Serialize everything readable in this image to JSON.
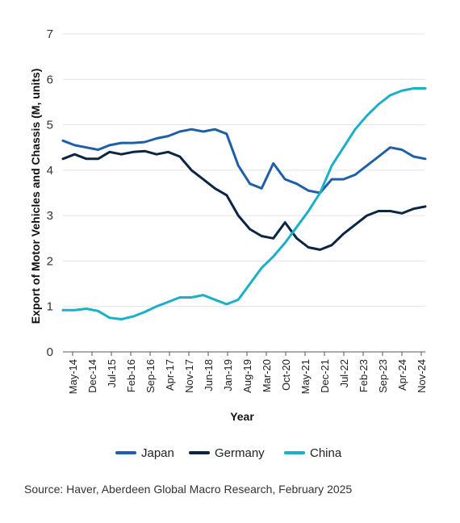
{
  "chart_data": {
    "type": "line",
    "xlabel": "Year",
    "ylabel": "Export of Motor Vehicles and Chassis (M, units)",
    "ylim": [
      0,
      7
    ],
    "yticks": [
      "0",
      "1",
      "2",
      "3",
      "4",
      "5",
      "6",
      "7"
    ],
    "x_tick_labels": [
      "May-14",
      "Dec-14",
      "Jul-15",
      "Feb-16",
      "Sep-16",
      "Apr-17",
      "Nov-17",
      "Jun-18",
      "Jan-19",
      "Aug-19",
      "Mar-20",
      "Oct-20",
      "May-21",
      "Dec-21",
      "Jul-22",
      "Feb-23",
      "Sep-23",
      "Apr-24",
      "Nov-24"
    ],
    "grid": true,
    "legend_position": "bottom",
    "series": [
      {
        "name": "Japan",
        "color": "#1f5fa8",
        "values": [
          4.65,
          4.55,
          4.5,
          4.45,
          4.55,
          4.6,
          4.6,
          4.62,
          4.7,
          4.75,
          4.85,
          4.9,
          4.85,
          4.9,
          4.8,
          4.1,
          3.7,
          3.6,
          4.15,
          3.8,
          3.7,
          3.55,
          3.5,
          3.8,
          3.8,
          3.9,
          4.1,
          4.3,
          4.5,
          4.45,
          4.3,
          4.25
        ]
      },
      {
        "name": "Germany",
        "color": "#0b2545",
        "values": [
          4.25,
          4.35,
          4.25,
          4.25,
          4.4,
          4.35,
          4.4,
          4.42,
          4.35,
          4.4,
          4.3,
          4.0,
          3.8,
          3.6,
          3.45,
          3.0,
          2.7,
          2.55,
          2.5,
          2.85,
          2.5,
          2.3,
          2.25,
          2.35,
          2.6,
          2.8,
          3.0,
          3.1,
          3.1,
          3.05,
          3.15,
          3.2
        ]
      },
      {
        "name": "China",
        "color": "#1ab0c8",
        "values": [
          0.92,
          0.92,
          0.95,
          0.9,
          0.75,
          0.72,
          0.78,
          0.88,
          1.0,
          1.1,
          1.2,
          1.2,
          1.25,
          1.15,
          1.05,
          1.15,
          1.5,
          1.85,
          2.1,
          2.4,
          2.75,
          3.1,
          3.5,
          4.1,
          4.5,
          4.9,
          5.2,
          5.45,
          5.65,
          5.75,
          5.8,
          5.8
        ]
      }
    ],
    "source": "Source: Haver, Aberdeen Global Macro Research, February 2025"
  }
}
